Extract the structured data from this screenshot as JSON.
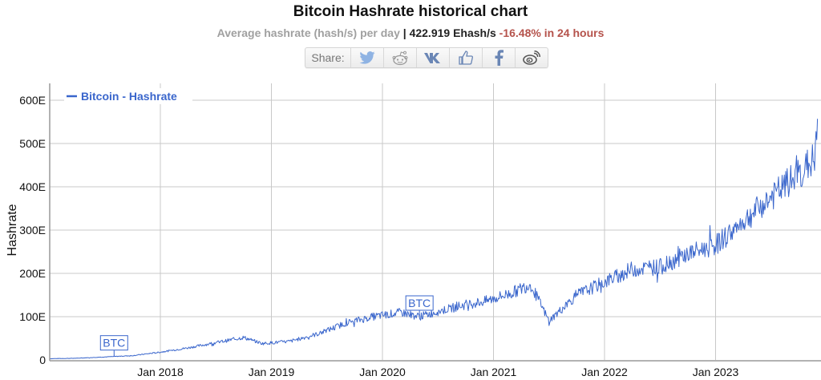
{
  "header": {
    "title": "Bitcoin Hashrate historical chart",
    "subtitle_label": "Average hashrate (hash/s) per day",
    "separator": "|",
    "current_value": "422.919 Ehash/s",
    "change": "-16.48% in 24 hours"
  },
  "share": {
    "label": "Share:",
    "icons": [
      "twitter-icon",
      "reddit-icon",
      "vk-icon",
      "like-icon",
      "facebook-icon",
      "weibo-icon"
    ]
  },
  "colors": {
    "series": "#3a66cc",
    "negative": "#b5534c",
    "grid": "#c8c8c8"
  },
  "chart_data": {
    "type": "line",
    "title": "Bitcoin Hashrate historical chart",
    "xlabel": "",
    "ylabel": "Hashrate",
    "ylim": [
      0,
      640
    ],
    "y_ticks": [
      "0",
      "100E",
      "200E",
      "300E",
      "400E",
      "500E",
      "600E"
    ],
    "x_ticks": [
      "Jan 2018",
      "Jan 2019",
      "Jan 2020",
      "Jan 2021",
      "Jan 2022",
      "Jan 2023"
    ],
    "grid": true,
    "legend": {
      "position": "top-left",
      "entries": [
        "Bitcoin - Hashrate"
      ]
    },
    "annotations": [
      {
        "label": "BTC",
        "date": "2017-08"
      },
      {
        "label": "BTC",
        "date": "2020-05"
      }
    ],
    "series": [
      {
        "name": "Bitcoin - Hashrate",
        "unit": "EH/s",
        "x": [
          "2017-01",
          "2017-04",
          "2017-07",
          "2017-10",
          "2018-01",
          "2018-04",
          "2018-07",
          "2018-10",
          "2018-12",
          "2019-03",
          "2019-06",
          "2019-09",
          "2019-12",
          "2020-03",
          "2020-05",
          "2020-07",
          "2020-10",
          "2020-12",
          "2021-03",
          "2021-05",
          "2021-07",
          "2021-10",
          "2022-01",
          "2022-04",
          "2022-07",
          "2022-10",
          "2023-01",
          "2023-04",
          "2023-07",
          "2023-10",
          "2023-12"
        ],
        "values": [
          3,
          4,
          7,
          10,
          18,
          28,
          40,
          52,
          38,
          43,
          60,
          85,
          100,
          110,
          100,
          112,
          128,
          135,
          155,
          175,
          90,
          150,
          180,
          210,
          215,
          245,
          265,
          320,
          375,
          430,
          470
        ]
      }
    ]
  }
}
